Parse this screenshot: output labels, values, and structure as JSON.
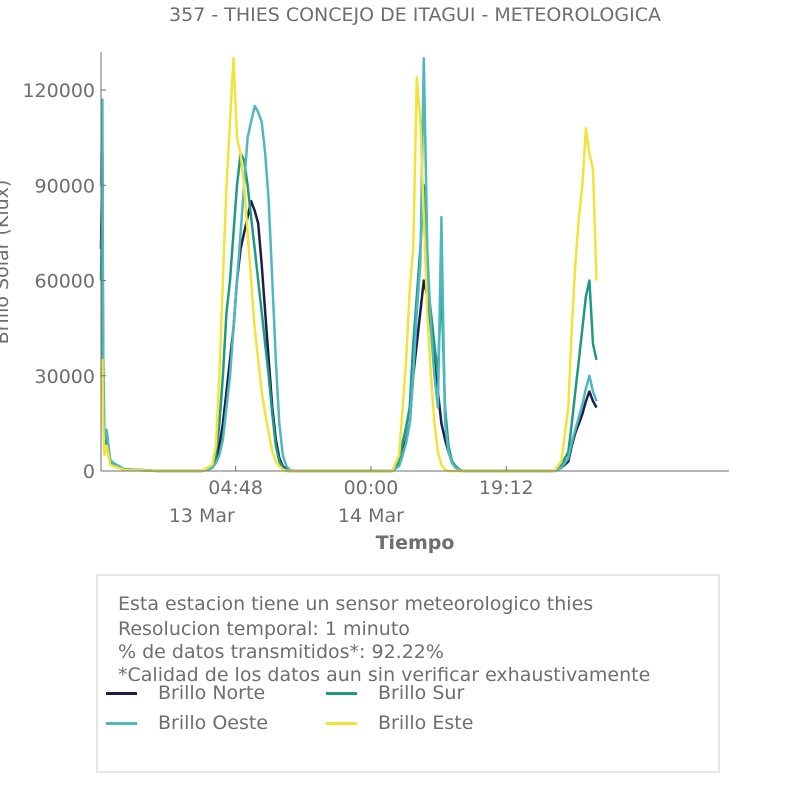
{
  "chart_data": {
    "type": "line",
    "title": "357 - THIES CONCEJO DE ITAGUI - METEOROLOGICA",
    "xlabel": "Tiempo",
    "ylabel": "Brillo Solar (Klux)",
    "ylim": [
      0,
      132000
    ],
    "yticks": [
      "0",
      "30000",
      "60000",
      "90000",
      "120000"
    ],
    "x_tick_labels": [
      "04:48",
      "00:00",
      "19:12"
    ],
    "x_date_labels": [
      "13 Mar",
      "14 Mar"
    ],
    "x_range_hours": [
      -14.3,
      74.8
    ],
    "grid": false,
    "legend_position": "bottom",
    "series": [
      {
        "name": "Brillo Norte",
        "color": "#1f1e4a",
        "x": [
          -14.3,
          -14.1,
          -14.0,
          -13.8,
          -13.5,
          -13.0,
          -12.5,
          -11.0,
          -6.0,
          0.0,
          1.5,
          2.0,
          2.5,
          3.0,
          3.5,
          4.0,
          4.5,
          5.0,
          5.5,
          6.0,
          6.5,
          7.0,
          7.5,
          8.0,
          8.5,
          9.0,
          9.5,
          10.0,
          10.5,
          11.0,
          11.5,
          12.0,
          12.5,
          13.0,
          13.5,
          14.0,
          15.0,
          18.0,
          22.0,
          27.0,
          28.0,
          28.5,
          29.0,
          29.5,
          30.0,
          30.5,
          31.0,
          31.5,
          32.0,
          32.5,
          33.0,
          33.5,
          34.0,
          34.5,
          35.0,
          35.5,
          36.0,
          36.5,
          37.0,
          37.5,
          38.0,
          39.0,
          42.0,
          46.0,
          50.0,
          51.0,
          52.0,
          52.5,
          53.0,
          53.5,
          54.0,
          54.5,
          55.0,
          55.5,
          56.0
        ],
        "y": [
          70000,
          100000,
          30000,
          8000,
          12000,
          3000,
          2000,
          500,
          0,
          0,
          1000,
          3000,
          8000,
          15000,
          25000,
          35000,
          45000,
          60000,
          70000,
          75000,
          80000,
          85000,
          82000,
          78000,
          65000,
          50000,
          35000,
          20000,
          10000,
          4000,
          1500,
          500,
          0,
          0,
          0,
          0,
          0,
          0,
          0,
          0,
          2000,
          6000,
          10000,
          15000,
          30000,
          40000,
          50000,
          60000,
          55000,
          45000,
          35000,
          25000,
          15000,
          10000,
          6000,
          3000,
          1500,
          500,
          0,
          0,
          0,
          0,
          0,
          0,
          0,
          1000,
          3000,
          8000,
          12000,
          15000,
          18000,
          22000,
          25000,
          22000,
          20000
        ]
      },
      {
        "name": "Brillo Sur",
        "color": "#1f9a82",
        "x": [
          -14.3,
          -14.1,
          -14.0,
          -13.8,
          -13.5,
          -13.0,
          -12.5,
          -11.0,
          -6.0,
          0.0,
          1.5,
          2.0,
          2.5,
          3.0,
          3.5,
          4.0,
          4.5,
          5.0,
          5.5,
          6.0,
          6.5,
          7.0,
          7.5,
          8.0,
          8.5,
          9.0,
          9.5,
          10.0,
          10.5,
          11.0,
          11.5,
          12.0,
          12.5,
          13.0,
          13.5,
          14.0,
          15.0,
          18.0,
          22.0,
          27.0,
          28.0,
          28.5,
          29.0,
          29.5,
          30.0,
          30.5,
          31.0,
          31.5,
          32.0,
          32.5,
          33.0,
          33.5,
          34.0,
          34.5,
          35.0,
          35.5,
          36.0,
          36.5,
          37.0,
          37.5,
          38.0,
          39.0,
          42.0,
          46.0,
          50.0,
          51.0,
          52.0,
          52.5,
          53.0,
          53.5,
          54.0,
          54.5,
          55.0,
          55.5,
          56.0
        ],
        "y": [
          60000,
          90000,
          25000,
          6000,
          10000,
          2500,
          2000,
          400,
          0,
          0,
          1500,
          5000,
          15000,
          30000,
          50000,
          60000,
          75000,
          90000,
          100000,
          98000,
          90000,
          80000,
          70000,
          60000,
          50000,
          40000,
          30000,
          18000,
          8000,
          3000,
          1000,
          300,
          0,
          0,
          0,
          0,
          0,
          0,
          0,
          0,
          3000,
          9000,
          14000,
          20000,
          40000,
          55000,
          70000,
          90000,
          60000,
          50000,
          40000,
          30000,
          60000,
          20000,
          8000,
          3000,
          1500,
          500,
          0,
          0,
          0,
          0,
          0,
          0,
          0,
          2000,
          6000,
          15000,
          25000,
          35000,
          45000,
          55000,
          60000,
          40000,
          35000
        ]
      },
      {
        "name": "Brillo Oeste",
        "color": "#4fb8bf",
        "x": [
          -14.3,
          -14.1,
          -14.0,
          -13.8,
          -13.5,
          -13.0,
          -12.5,
          -11.0,
          -6.0,
          0.0,
          1.5,
          2.0,
          2.5,
          3.0,
          3.5,
          4.0,
          4.5,
          5.0,
          5.5,
          6.0,
          6.5,
          7.0,
          7.5,
          8.0,
          8.5,
          9.0,
          9.5,
          10.0,
          10.5,
          11.0,
          11.5,
          12.0,
          12.5,
          13.0,
          13.5,
          14.0,
          15.0,
          18.0,
          22.0,
          27.0,
          28.0,
          28.5,
          29.0,
          29.5,
          30.0,
          30.5,
          31.0,
          31.5,
          32.0,
          32.5,
          33.0,
          33.5,
          34.0,
          34.5,
          35.0,
          35.5,
          36.0,
          36.5,
          37.0,
          37.5,
          38.0,
          39.0,
          42.0,
          46.0,
          50.0,
          51.0,
          52.0,
          52.5,
          53.0,
          53.5,
          54.0,
          54.5,
          55.0,
          55.5,
          56.0
        ],
        "y": [
          90000,
          117000,
          40000,
          10000,
          13000,
          3500,
          2500,
          600,
          0,
          0,
          1000,
          2500,
          5000,
          10000,
          20000,
          30000,
          45000,
          60000,
          75000,
          90000,
          105000,
          110000,
          115000,
          113000,
          110000,
          100000,
          85000,
          60000,
          35000,
          15000,
          5000,
          1500,
          300,
          0,
          0,
          0,
          0,
          0,
          0,
          0,
          1500,
          5000,
          9000,
          15000,
          30000,
          50000,
          65000,
          130000,
          70000,
          45000,
          30000,
          20000,
          80000,
          15000,
          6000,
          2500,
          1000,
          300,
          0,
          0,
          0,
          0,
          0,
          0,
          0,
          1000,
          4000,
          9000,
          13000,
          17000,
          21000,
          26000,
          30000,
          25000,
          22000
        ]
      },
      {
        "name": "Brillo Este",
        "color": "#f2e339",
        "x": [
          -14.3,
          -14.1,
          -14.0,
          -13.8,
          -13.5,
          -13.0,
          -12.5,
          -11.0,
          -6.0,
          0.0,
          1.5,
          2.0,
          2.5,
          3.0,
          3.5,
          4.0,
          4.5,
          5.0,
          5.5,
          6.0,
          6.5,
          7.0,
          7.5,
          8.0,
          8.5,
          9.0,
          9.5,
          10.0,
          10.5,
          11.0,
          11.5,
          12.0,
          12.5,
          13.0,
          13.5,
          14.0,
          15.0,
          18.0,
          22.0,
          27.0,
          28.0,
          28.5,
          29.0,
          29.5,
          30.0,
          30.5,
          31.0,
          31.5,
          32.0,
          32.5,
          33.0,
          33.5,
          34.0,
          34.5,
          35.0,
          35.5,
          36.0,
          36.5,
          37.0,
          37.5,
          38.0,
          39.0,
          42.0,
          46.0,
          50.0,
          51.0,
          52.0,
          52.5,
          53.0,
          53.5,
          54.0,
          54.5,
          55.0,
          55.5,
          56.0
        ],
        "y": [
          30000,
          35000,
          15000,
          5000,
          8000,
          2000,
          1500,
          300,
          0,
          0,
          2000,
          8000,
          30000,
          60000,
          90000,
          110000,
          130000,
          105000,
          100000,
          90000,
          75000,
          60000,
          45000,
          35000,
          25000,
          18000,
          12000,
          6000,
          3000,
          1500,
          500,
          0,
          0,
          0,
          0,
          0,
          0,
          0,
          0,
          0,
          5000,
          20000,
          35000,
          57000,
          70000,
          124000,
          110000,
          80000,
          50000,
          30000,
          15000,
          6000,
          2000,
          500,
          0,
          0,
          0,
          0,
          0,
          0,
          0,
          0,
          0,
          0,
          0,
          3000,
          20000,
          45000,
          65000,
          80000,
          90000,
          108000,
          100000,
          95000,
          60000
        ]
      }
    ]
  },
  "info_box": {
    "lines": [
      "Esta estacion tiene un sensor meteorologico thies",
      "Resolucion temporal: 1 minuto",
      "% de datos transmitidos*: 92.22%",
      "*Calidad de los datos aun sin verificar exhaustivamente"
    ]
  },
  "legend": {
    "items": [
      {
        "label": "Brillo Norte",
        "color": "#1f1e4a"
      },
      {
        "label": "Brillo Sur",
        "color": "#1f9a82"
      },
      {
        "label": "Brillo Oeste",
        "color": "#4fb8bf"
      },
      {
        "label": "Brillo Este",
        "color": "#f2e339"
      }
    ]
  }
}
